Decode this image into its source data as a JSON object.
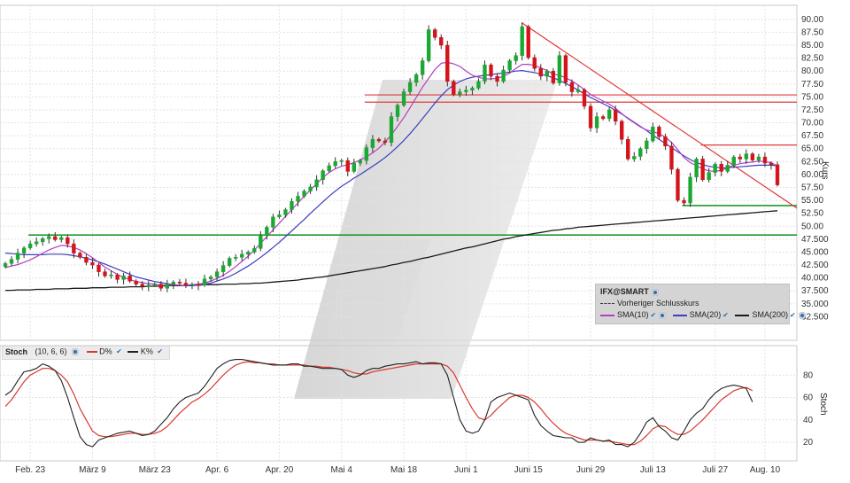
{
  "symbol": "IFX@SMART",
  "legend": {
    "prev_close": "Vorheriger Schlusskurs",
    "sma10": "SMA(10)",
    "sma20": "SMA(20)",
    "sma200": "SMA(200)"
  },
  "stoch_legend": {
    "name": "Stoch",
    "params": "(10, 6, 6)",
    "d": "D%",
    "k": "K%"
  },
  "axis_titles": {
    "price": "Kurs",
    "stoch": "Stoch"
  },
  "colors": {
    "up": "#1aa832",
    "down": "#d4141a",
    "sma10": "#b43fbf",
    "sma20": "#3d3dbf",
    "sma200": "#1a1a1a",
    "support": "#1e9a2c",
    "resistance": "#e0393b",
    "d": "#d83a2e",
    "k": "#222222"
  },
  "chart_data": [
    {
      "type": "candlestick",
      "title": "IFX@SMART",
      "ylabel": "Kurs",
      "ylim": [
        30,
        91
      ],
      "x_ticks": [
        "Feb. 23",
        "März 9",
        "März 23",
        "Apr. 6",
        "Apr. 20",
        "Mai 4",
        "Mai 18",
        "Juni 1",
        "Juni 15",
        "Juni 29",
        "Juli 13",
        "Juli 27",
        "Aug. 10"
      ],
      "y_ticks": [
        "90.00",
        "87.50",
        "85.00",
        "82.50",
        "80.00",
        "77.50",
        "75.00",
        "72.50",
        "70.00",
        "67.50",
        "65.00",
        "62.50",
        "60.00",
        "57.50",
        "55.00",
        "52.50",
        "50.00",
        "47.500",
        "45.000",
        "42.500",
        "40.000",
        "37.500",
        "35.000",
        "32.500"
      ],
      "closes": [
        42.8,
        43.6,
        44.8,
        45.8,
        46.6,
        47.0,
        47.6,
        48.0,
        47.4,
        47.8,
        46.6,
        44.8,
        44.0,
        43.0,
        42.5,
        41.2,
        40.4,
        40.6,
        39.7,
        40.4,
        39.4,
        38.8,
        38.4,
        38.6,
        38.8,
        38.0,
        38.8,
        39.2,
        39.0,
        38.6,
        38.8,
        38.6,
        39.8,
        40.2,
        41.2,
        42.4,
        43.8,
        44.0,
        44.6,
        45.0,
        45.7,
        48.2,
        49.8,
        51.8,
        52.2,
        53.2,
        54.8,
        55.8,
        56.8,
        57.6,
        59.0,
        60.7,
        61.7,
        62.5,
        62.7,
        60.6,
        62.2,
        62.7,
        65.2,
        66.8,
        66.5,
        66.2,
        71.2,
        73.4,
        76.0,
        77.8,
        79.3,
        82.0,
        88.0,
        86.5,
        85.0,
        78.0,
        75.5,
        76.0,
        76.3,
        76.7,
        78.0,
        81.2,
        79.0,
        78.0,
        80.2,
        82.0,
        83.0,
        88.6,
        82.6,
        80.5,
        79.0,
        80.0,
        77.7,
        83.0,
        77.8,
        76.0,
        76.4,
        73.2,
        69.0,
        71.2,
        70.8,
        72.5,
        70.3,
        66.8,
        63.0,
        63.5,
        65.0,
        66.5,
        69.2,
        67.3,
        65.5,
        61.0,
        55.0,
        54.5,
        59.5,
        63.0,
        59.0,
        60.4,
        62.0,
        60.6,
        61.8,
        63.4,
        63.0,
        64.0,
        62.8,
        63.4,
        62.2,
        61.9,
        58.0
      ],
      "sma10": [
        42.0,
        42.3,
        42.6,
        43.0,
        43.5,
        44.1,
        44.8,
        45.4,
        45.9,
        46.3,
        46.2,
        45.9,
        45.4,
        44.7,
        43.9,
        43.0,
        42.1,
        41.4,
        40.7,
        40.1,
        39.7,
        39.3,
        39.1,
        38.9,
        38.8,
        38.6,
        38.6,
        38.6,
        38.6,
        38.6,
        38.7,
        38.8,
        39.0,
        39.4,
        39.9,
        40.5,
        41.3,
        42.2,
        43.2,
        44.2,
        45.4,
        46.7,
        48.0,
        49.3,
        50.6,
        51.9,
        53.2,
        54.5,
        55.8,
        57.0,
        58.2,
        59.4,
        60.4,
        61.1,
        61.6,
        61.9,
        62.3,
        62.8,
        63.4,
        64.2,
        65.1,
        66.3,
        67.7,
        69.3,
        71.0,
        72.9,
        74.9,
        76.9,
        78.6,
        80.3,
        81.5,
        81.7,
        81.4,
        80.9,
        80.0,
        79.2,
        78.8,
        78.5,
        78.5,
        78.6,
        79.0,
        79.6,
        80.5,
        81.3,
        81.3,
        81.1,
        80.6,
        80.1,
        79.4,
        79.2,
        78.7,
        78.1,
        77.3,
        76.4,
        75.5,
        74.8,
        74.2,
        73.6,
        72.8,
        71.8,
        70.8,
        70.0,
        69.2,
        68.6,
        68.3,
        67.9,
        67.2,
        66.2,
        64.8,
        63.3,
        62.3,
        61.7,
        61.1,
        60.7,
        60.6,
        60.8,
        61.3,
        61.8,
        62.1,
        62.3,
        62.4,
        62.6,
        62.5,
        62.3,
        61.6
      ],
      "sma20": [
        44.8,
        44.7,
        44.6,
        44.5,
        44.5,
        44.5,
        44.5,
        44.6,
        44.6,
        44.6,
        44.5,
        44.3,
        44.1,
        43.8,
        43.5,
        43.1,
        42.7,
        42.2,
        41.7,
        41.2,
        40.7,
        40.2,
        39.9,
        39.6,
        39.3,
        39.1,
        38.9,
        38.7,
        38.6,
        38.5,
        38.5,
        38.6,
        38.8,
        39.0,
        39.4,
        39.8,
        40.3,
        40.9,
        41.6,
        42.3,
        43.1,
        44.0,
        44.9,
        45.9,
        46.9,
        48.0,
        49.1,
        50.2,
        51.3,
        52.5,
        53.6,
        54.7,
        55.8,
        56.8,
        57.7,
        58.5,
        59.3,
        60.0,
        60.8,
        61.6,
        62.4,
        63.3,
        64.3,
        65.4,
        66.6,
        67.9,
        69.3,
        70.8,
        72.3,
        73.8,
        75.2,
        76.4,
        77.3,
        78.0,
        78.5,
        78.8,
        79.0,
        79.2,
        79.3,
        79.5,
        79.6,
        79.8,
        80.0,
        80.1,
        79.9,
        79.7,
        79.4,
        79.1,
        78.7,
        78.2,
        77.6,
        77.0,
        76.3,
        75.6,
        74.9,
        74.3,
        73.7,
        73.1,
        72.4,
        71.7,
        70.9,
        70.1,
        69.3,
        68.5,
        67.6,
        66.8,
        66.0,
        65.2,
        64.4,
        63.6,
        62.9,
        62.3,
        61.9,
        61.6,
        61.4,
        61.3,
        61.3,
        61.4,
        61.5,
        61.6,
        61.7,
        61.8,
        61.8,
        61.8,
        61.7
      ],
      "sma200": [
        37.6,
        37.6,
        37.7,
        37.7,
        37.7,
        37.8,
        37.8,
        37.8,
        37.9,
        37.9,
        37.9,
        38.0,
        38.0,
        38.0,
        38.1,
        38.1,
        38.1,
        38.2,
        38.2,
        38.2,
        38.3,
        38.3,
        38.3,
        38.4,
        38.4,
        38.4,
        38.5,
        38.5,
        38.5,
        38.6,
        38.6,
        38.6,
        38.7,
        38.7,
        38.7,
        38.8,
        38.8,
        38.8,
        38.9,
        38.9,
        39.0,
        39.0,
        39.1,
        39.2,
        39.3,
        39.4,
        39.5,
        39.6,
        39.8,
        39.9,
        40.1,
        40.2,
        40.4,
        40.6,
        40.8,
        41.0,
        41.2,
        41.4,
        41.6,
        41.8,
        42.0,
        42.2,
        42.5,
        42.7,
        43.0,
        43.2,
        43.5,
        43.8,
        44.0,
        44.3,
        44.6,
        44.9,
        45.2,
        45.5,
        45.8,
        46.0,
        46.3,
        46.6,
        46.9,
        47.2,
        47.5,
        47.7,
        48.0,
        48.2,
        48.4,
        48.6,
        48.8,
        49.0,
        49.2,
        49.3,
        49.5,
        49.6,
        49.8,
        49.9,
        50.0,
        50.1,
        50.2,
        50.3,
        50.4,
        50.5,
        50.6,
        50.7,
        50.8,
        50.9,
        51.0,
        51.1,
        51.2,
        51.3,
        51.4,
        51.5,
        51.6,
        51.7,
        51.8,
        51.9,
        52.0,
        52.1,
        52.2,
        52.3,
        52.4,
        52.5,
        52.6,
        52.7,
        52.8,
        52.9,
        53.0
      ],
      "horizontal_lines": [
        {
          "value": 48.3,
          "color": "green",
          "span": "Feb. 23 – end"
        },
        {
          "value": 54.0,
          "color": "green",
          "span": "Juli 20 – end"
        },
        {
          "value": 75.4,
          "color": "red",
          "span": "Mai 13 – end"
        },
        {
          "value": 74.0,
          "color": "red",
          "span": "Mai 13 – end"
        },
        {
          "value": 65.7,
          "color": "red",
          "span": "Juli 27 – end"
        }
      ],
      "trend_line": {
        "from": 89.3,
        "to": 53.5,
        "color": "red",
        "span": "Juni 20 – end"
      }
    },
    {
      "type": "line",
      "title": "Stoch (10, 6, 6)",
      "ylabel": "Stoch",
      "ylim": [
        5,
        100
      ],
      "y_ticks": [
        "80",
        "60",
        "40",
        "20"
      ],
      "series": [
        {
          "name": "K%",
          "values": [
            62,
            66,
            75,
            83,
            84,
            86,
            90,
            88,
            84,
            75,
            60,
            42,
            25,
            18,
            16,
            22,
            24,
            26,
            28,
            29,
            30,
            28,
            26,
            27,
            30,
            36,
            42,
            50,
            56,
            60,
            62,
            64,
            70,
            78,
            86,
            90,
            93,
            94,
            94,
            93,
            92,
            91,
            90,
            89,
            89,
            89,
            90,
            90,
            88,
            88,
            87,
            86,
            86,
            86,
            85,
            80,
            78,
            80,
            84,
            86,
            86,
            88,
            89,
            90,
            90,
            91,
            92,
            90,
            91,
            91,
            90,
            80,
            60,
            40,
            30,
            28,
            30,
            40,
            56,
            60,
            62,
            64,
            62,
            60,
            58,
            44,
            35,
            30,
            26,
            25,
            24,
            24,
            20,
            20,
            24,
            22,
            21,
            22,
            18,
            18,
            16,
            20,
            28,
            38,
            42,
            34,
            30,
            24,
            22,
            30,
            40,
            46,
            50,
            58,
            64,
            68,
            70,
            71,
            70,
            68,
            56
          ]
        },
        {
          "name": "D%",
          "values": [
            52,
            58,
            66,
            74,
            80,
            83,
            86,
            86,
            84,
            80,
            74,
            63,
            50,
            40,
            30,
            26,
            25,
            25,
            26,
            27,
            28,
            28,
            27,
            27,
            28,
            30,
            34,
            40,
            46,
            51,
            56,
            59,
            63,
            68,
            74,
            80,
            85,
            89,
            91,
            92,
            91,
            91,
            90,
            90,
            89,
            89,
            89,
            89,
            89,
            88,
            88,
            87,
            87,
            86,
            85,
            84,
            82,
            81,
            81,
            83,
            84,
            85,
            86,
            87,
            88,
            89,
            90,
            90,
            90,
            90,
            90,
            88,
            82,
            71,
            60,
            50,
            42,
            40,
            44,
            50,
            55,
            60,
            62,
            62,
            60,
            56,
            50,
            43,
            37,
            32,
            28,
            26,
            24,
            22,
            22,
            22,
            21,
            21,
            20,
            19,
            18,
            18,
            21,
            26,
            32,
            35,
            34,
            30,
            27,
            27,
            30,
            35,
            40,
            46,
            52,
            58,
            62,
            66,
            68,
            69,
            66
          ]
        }
      ]
    }
  ]
}
